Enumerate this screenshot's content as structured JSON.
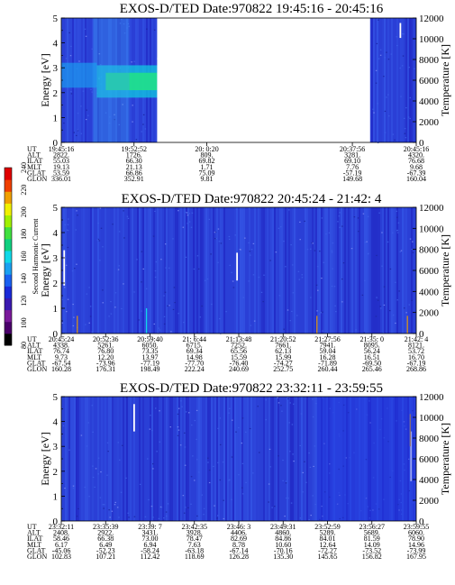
{
  "colors": {
    "background": "#2a3fd6",
    "colorbar": [
      "#000000",
      "#4a006a",
      "#7a1a9a",
      "#3a1ab0",
      "#1a2ad8",
      "#1a60f0",
      "#1aa0f0",
      "#10d8e8",
      "#10d080",
      "#40e040",
      "#a0f000",
      "#f0f000",
      "#f0a000",
      "#f04000",
      "#e00000"
    ]
  },
  "colorbar": {
    "label": "Second Harmonic Current",
    "ticks": [
      "80",
      "100",
      "120",
      "140",
      "160",
      "180",
      "200",
      "220",
      "240"
    ]
  },
  "chart_data": [
    {
      "type": "heatmap",
      "title": "EXOS-D/TED   Date:970822   19:45:16 - 20:45:16",
      "ylabel": "Energy [eV]",
      "y2label": "Temperature [K]",
      "ylim": [
        0,
        5
      ],
      "y2lim": [
        0,
        12000
      ],
      "yticks": [
        "0",
        "1",
        "2",
        "3",
        "4",
        "5"
      ],
      "y2ticks": [
        "0",
        "2000",
        "4000",
        "6000",
        "8000",
        "10000",
        "12000"
      ],
      "data_gap": [
        0.27,
        0.87
      ],
      "features": [
        {
          "kind": "green_band",
          "x": [
            0.1,
            0.27
          ],
          "e": [
            2.1,
            2.8
          ]
        },
        {
          "kind": "cyan_band",
          "x": [
            0.0,
            0.1
          ],
          "e": [
            2.2,
            3.2
          ]
        },
        {
          "kind": "white_line",
          "x": 0.955,
          "e": [
            4.2,
            4.8
          ]
        }
      ],
      "orbit": {
        "labels": [
          "UT",
          "ALT",
          "ILAT",
          "MLT",
          "GLAT",
          "GLON"
        ],
        "columns": [
          {
            "pos": 0.0,
            "values": [
              "19:45:16",
              "2822.",
              "55.03",
              "19.13",
              "53.59",
              "336.01"
            ]
          },
          {
            "pos": 0.205,
            "values": [
              "19:52:52",
              "1726.",
              "66.30",
              "21.13",
              "66.86",
              "352.91"
            ]
          },
          {
            "pos": 0.41,
            "values": [
              "20: 0:20",
              "809.",
              "69.82",
              "1.71",
              "75.09",
              "9.81"
            ]
          },
          {
            "pos": 0.82,
            "values": [
              "20:37:56",
              "3281.",
              "69.10",
              "7.76",
              "-57.19",
              "149.68"
            ]
          },
          {
            "pos": 1.0,
            "values": [
              "20:45:16",
              "4320.",
              "76.68",
              "9.68",
              "-67.39",
              "160.04"
            ]
          }
        ]
      }
    },
    {
      "type": "heatmap",
      "title": "EXOS-D/TED   Date:970822   20:45:24 - 21:42: 4",
      "ylabel": "Energy [eV]",
      "y2label": "Temperature [K]",
      "ylim": [
        0,
        5
      ],
      "y2lim": [
        0,
        12000
      ],
      "yticks": [
        "0",
        "1",
        "2",
        "3",
        "4",
        "5"
      ],
      "y2ticks": [
        "0",
        "2000",
        "4000",
        "6000",
        "8000",
        "10000",
        "12000"
      ],
      "features": [
        {
          "kind": "white_line",
          "x": 0.008,
          "e": [
            1.9,
            3.3
          ]
        },
        {
          "kind": "white_line",
          "x": 0.495,
          "e": [
            2.1,
            3.2
          ]
        },
        {
          "kind": "orange_line",
          "x": 0.045,
          "e": [
            0.0,
            0.7
          ]
        },
        {
          "kind": "orange_line",
          "x": 0.72,
          "e": [
            0.0,
            0.7
          ]
        },
        {
          "kind": "orange_line",
          "x": 0.975,
          "e": [
            0.0,
            0.7
          ]
        },
        {
          "kind": "cyan_line",
          "x": 0.24,
          "e": [
            0.0,
            1.0
          ]
        }
      ],
      "orbit": {
        "labels": [
          "UT",
          "ALT",
          "ILAT",
          "MLT",
          "GLAT",
          "GLON"
        ],
        "columns": [
          {
            "pos": 0.0,
            "values": [
              "20:45:24",
              "4338.",
              "76.74",
              "9.73",
              "-67.54",
              "160.28"
            ]
          },
          {
            "pos": 0.125,
            "values": [
              "20:52:36",
              "5261.",
              "76.80",
              "12.20",
              "-73.96",
              "176.31"
            ]
          },
          {
            "pos": 0.25,
            "values": [
              "20:59:40",
              "6050.",
              "73.35",
              "13.97",
              "-77.19",
              "198.49"
            ]
          },
          {
            "pos": 0.375,
            "values": [
              "21: 6:44",
              "6715.",
              "69.34",
              "14.98",
              "-77.70",
              "222.24"
            ]
          },
          {
            "pos": 0.5,
            "values": [
              "21:13:48",
              "7252.",
              "65.56",
              "15.59",
              "-76.40",
              "240.69"
            ]
          },
          {
            "pos": 0.625,
            "values": [
              "21:20:52",
              "7661.",
              "62.13",
              "15.99",
              "-74.27",
              "252.75"
            ]
          },
          {
            "pos": 0.75,
            "values": [
              "21:27:56",
              "7941.",
              "59.04",
              "16.28",
              "-71.89",
              "260.44"
            ]
          },
          {
            "pos": 0.875,
            "values": [
              "21:35: 0",
              "8095.",
              "56.24",
              "16.51",
              "-69.50",
              "265.46"
            ]
          },
          {
            "pos": 1.0,
            "values": [
              "21:42: 4",
              "8121.",
              "53.72",
              "16.70",
              "-67.19",
              "268.86"
            ]
          }
        ]
      }
    },
    {
      "type": "heatmap",
      "title": "EXOS-D/TED   Date:970822   23:32:11 - 23:59:55",
      "ylabel": "Energy [eV]",
      "y2label": "Temperature [K]",
      "ylim": [
        0,
        5
      ],
      "y2lim": [
        0,
        12000
      ],
      "yticks": [
        "0",
        "1",
        "2",
        "3",
        "4",
        "5"
      ],
      "y2ticks": [
        "0",
        "2000",
        "4000",
        "6000",
        "8000",
        "10000",
        "12000"
      ],
      "features": [
        {
          "kind": "white_line",
          "x": 0.205,
          "e": [
            3.6,
            4.7
          ]
        },
        {
          "kind": "white_line",
          "x": 0.985,
          "e": [
            1.6,
            3.6
          ]
        },
        {
          "kind": "orange_line",
          "x": 0.983,
          "e": [
            3.0,
            4.3
          ]
        },
        {
          "kind": "darkshift",
          "x": [
            0.72,
            1.0
          ]
        }
      ],
      "orbit": {
        "labels": [
          "UT",
          "ALT",
          "ILAT",
          "MLT",
          "GLAT",
          "GLON"
        ],
        "columns": [
          {
            "pos": 0.0,
            "values": [
              "23:32:11",
              "2408.",
              "58.46",
              "6.17",
              "-45.06",
              "102.83"
            ]
          },
          {
            "pos": 0.125,
            "values": [
              "23:35:39",
              "2922.",
              "66.38",
              "6.49",
              "-52.23",
              "107.21"
            ]
          },
          {
            "pos": 0.25,
            "values": [
              "23:39: 7",
              "3431.",
              "73.00",
              "6.94",
              "-58.24",
              "112.42"
            ]
          },
          {
            "pos": 0.375,
            "values": [
              "23:42:35",
              "3928.",
              "78.47",
              "7.63",
              "-63.18",
              "118.69"
            ]
          },
          {
            "pos": 0.5,
            "values": [
              "23:46: 3",
              "4406.",
              "82.69",
              "8.78",
              "-67.14",
              "126.28"
            ]
          },
          {
            "pos": 0.625,
            "values": [
              "23:49:31",
              "4860.",
              "84.86",
              "10.60",
              "-70.16",
              "135.30"
            ]
          },
          {
            "pos": 0.75,
            "values": [
              "23:52:59",
              "5289.",
              "84.01",
              "12.64",
              "-72.27",
              "145.65"
            ]
          },
          {
            "pos": 0.875,
            "values": [
              "23:56:27",
              "5689.",
              "81.59",
              "14.09",
              "-73.52",
              "156.82"
            ]
          },
          {
            "pos": 1.0,
            "values": [
              "23:59:55",
              "6060.",
              "78.90",
              "14.96",
              "-73.99",
              "167.95"
            ]
          }
        ]
      }
    }
  ]
}
